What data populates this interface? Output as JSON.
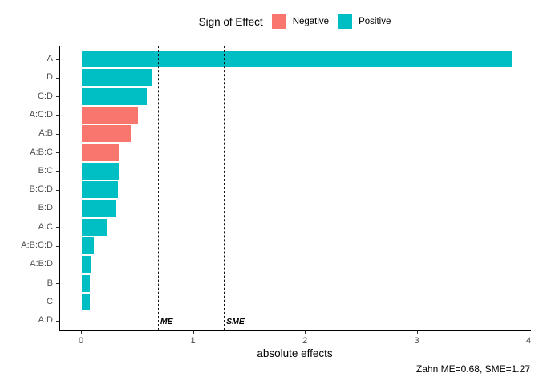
{
  "legend": {
    "title": "Sign of Effect",
    "items": [
      {
        "label": "Negative",
        "color": "#F8766D"
      },
      {
        "label": "Positive",
        "color": "#00BFC4"
      }
    ]
  },
  "chart_data": {
    "type": "bar",
    "orientation": "horizontal",
    "title": "",
    "xlabel": "absolute effects",
    "ylabel": "",
    "caption": "Zahn ME=0.68, SME=1.27",
    "legend_position": "top",
    "categories": [
      "A",
      "D",
      "C:D",
      "A:C:D",
      "A:B",
      "A:B:C",
      "B:C",
      "B:C:D",
      "B:D",
      "A:C",
      "A:B:C:D",
      "A:B:D",
      "B",
      "C",
      "A:D"
    ],
    "values": [
      3.84,
      0.63,
      0.58,
      0.5,
      0.44,
      0.33,
      0.33,
      0.32,
      0.31,
      0.22,
      0.11,
      0.08,
      0.07,
      0.07,
      0.0
    ],
    "signs": [
      "positive",
      "positive",
      "positive",
      "negative",
      "negative",
      "negative",
      "positive",
      "positive",
      "positive",
      "positive",
      "positive",
      "positive",
      "positive",
      "positive",
      "positive"
    ],
    "colors": {
      "negative": "#F8766D",
      "positive": "#00BFC4"
    },
    "x_ticks": [
      0,
      1,
      2,
      3,
      4
    ],
    "xlim": [
      0,
      4.03
    ],
    "grid": false,
    "reference_lines": [
      {
        "label": "ME",
        "value": 0.68
      },
      {
        "label": "SME",
        "value": 1.27
      }
    ]
  }
}
